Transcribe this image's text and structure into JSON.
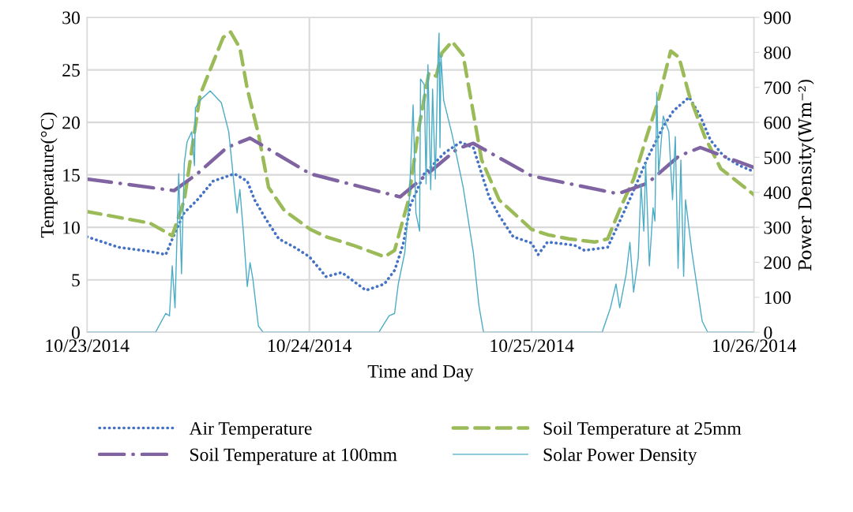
{
  "chart_data": {
    "type": "line",
    "xlabel": "Time and Day",
    "ylabel": "Temperature(°C)",
    "y2label": "Power Density(Wm⁻²)",
    "xlim": [
      "2014-10-23",
      "2014-10-26"
    ],
    "xticks": [
      {
        "value": "2014-10-23",
        "label": "10/23/2014"
      },
      {
        "value": "2014-10-24",
        "label": "10/24/2014"
      },
      {
        "value": "2014-10-25",
        "label": "10/25/2014"
      },
      {
        "value": "2014-10-26",
        "label": "10/26/2014"
      }
    ],
    "ylim": [
      0,
      30
    ],
    "yticks": [
      0,
      5,
      10,
      15,
      20,
      25,
      30
    ],
    "y2lim": [
      0,
      900
    ],
    "y2ticks": [
      0,
      100,
      200,
      300,
      400,
      500,
      600,
      700,
      800,
      900
    ],
    "grid": true,
    "legend": "bottom",
    "series": [
      {
        "name": "Air Temperature",
        "color": "#4472c4",
        "line_style": "dotted",
        "x": [
          "2014-10-23T00:00",
          "2014-10-23T03:24",
          "2014-10-23T06:48",
          "2014-10-23T08:30",
          "2014-10-23T09:24",
          "2014-10-23T10:30",
          "2014-10-23T11:54",
          "2014-10-23T13:36",
          "2014-10-23T15:54",
          "2014-10-23T17:18",
          "2014-10-23T18:06",
          "2014-10-23T19:18",
          "2014-10-23T20:42",
          "2014-10-23T22:24",
          "2014-10-24T00:00",
          "2014-10-24T01:48",
          "2014-10-24T03:30",
          "2014-10-24T06:06",
          "2014-10-24T08:06",
          "2014-10-24T09:12",
          "2014-10-24T10:06",
          "2014-10-24T10:54",
          "2014-10-24T12:24",
          "2014-10-24T14:36",
          "2014-10-24T16:18",
          "2014-10-24T17:42",
          "2014-10-24T18:36",
          "2014-10-24T19:24",
          "2014-10-24T20:30",
          "2014-10-24T22:00",
          "2014-10-25T00:00",
          "2014-10-25T00:42",
          "2014-10-25T01:42",
          "2014-10-25T04:36",
          "2014-10-25T05:42",
          "2014-10-25T08:12",
          "2014-10-25T09:06",
          "2014-10-25T10:48",
          "2014-10-25T12:30",
          "2014-10-25T14:12",
          "2014-10-25T15:18",
          "2014-10-25T17:00",
          "2014-10-25T18:12",
          "2014-10-25T19:18",
          "2014-10-25T20:42",
          "2014-10-25T22:24",
          "2014-10-26T00:00"
        ],
        "values": [
          9.1,
          8.1,
          7.7,
          7.4,
          9.3,
          11.4,
          12.6,
          14.4,
          15.1,
          14.4,
          12.6,
          10.8,
          8.9,
          8.1,
          7.2,
          5.3,
          5.7,
          4.0,
          4.6,
          5.9,
          8.3,
          12.1,
          15.1,
          17.1,
          18.1,
          17.6,
          15.1,
          12.9,
          11.1,
          9.1,
          8.5,
          7.4,
          8.6,
          8.3,
          7.8,
          8.1,
          9.8,
          13.1,
          16.6,
          19.6,
          21.1,
          22.4,
          20.6,
          18.3,
          16.8,
          15.9,
          15.3
        ]
      },
      {
        "name": "Soil Temperature at 25mm",
        "color": "#9bbb59",
        "line_style": "dashed",
        "x": [
          "2014-10-23T00:00",
          "2014-10-23T06:48",
          "2014-10-23T09:12",
          "2014-10-23T10:30",
          "2014-10-23T12:12",
          "2014-10-23T14:42",
          "2014-10-23T15:30",
          "2014-10-23T16:30",
          "2014-10-23T17:18",
          "2014-10-23T18:30",
          "2014-10-23T19:36",
          "2014-10-23T21:18",
          "2014-10-24T00:06",
          "2014-10-24T01:48",
          "2014-10-24T04:42",
          "2014-10-24T08:06",
          "2014-10-24T09:12",
          "2014-10-24T10:42",
          "2014-10-24T11:48",
          "2014-10-24T12:54",
          "2014-10-24T13:42",
          "2014-10-24T14:18",
          "2014-10-24T15:24",
          "2014-10-24T16:36",
          "2014-10-24T17:30",
          "2014-10-24T18:36",
          "2014-10-24T20:30",
          "2014-10-25T00:00",
          "2014-10-25T01:42",
          "2014-10-25T04:00",
          "2014-10-25T06:48",
          "2014-10-25T08:12",
          "2014-10-25T09:42",
          "2014-10-25T11:00",
          "2014-10-25T12:30",
          "2014-10-25T13:36",
          "2014-10-25T15:00",
          "2014-10-25T15:54",
          "2014-10-25T17:00",
          "2014-10-25T18:42",
          "2014-10-25T20:24",
          "2014-10-26T00:00"
        ],
        "values": [
          11.5,
          10.4,
          9.2,
          12.6,
          22.6,
          28.1,
          28.6,
          27.1,
          23.2,
          18.9,
          13.8,
          11.6,
          9.8,
          9.1,
          8.3,
          7.2,
          7.8,
          12.6,
          19.4,
          24.7,
          24.4,
          26.6,
          27.7,
          26.4,
          21.9,
          16.4,
          12.6,
          9.8,
          9.3,
          8.9,
          8.6,
          8.9,
          12.1,
          14.6,
          18.9,
          21.9,
          26.8,
          26.2,
          22.6,
          18.6,
          15.6,
          13.1
        ]
      },
      {
        "name": "Soil Temperature at 100mm",
        "color": "#8064a2",
        "line_style": "dashdot",
        "x": [
          "2014-10-23T00:00",
          "2014-10-23T09:24",
          "2014-10-23T11:54",
          "2014-10-23T15:06",
          "2014-10-23T17:36",
          "2014-10-24T00:06",
          "2014-10-24T09:48",
          "2014-10-24T16:00",
          "2014-10-24T17:42",
          "2014-10-25T00:00",
          "2014-10-25T09:18",
          "2014-10-25T12:30",
          "2014-10-25T15:54",
          "2014-10-25T18:12",
          "2014-10-26T00:00"
        ],
        "values": [
          14.6,
          13.5,
          15.1,
          17.6,
          18.5,
          15.1,
          12.9,
          17.5,
          18.0,
          14.9,
          13.2,
          14.2,
          16.8,
          17.6,
          15.7
        ]
      },
      {
        "name": "Solar Power Density",
        "color": "#4bacc6",
        "line_style": "solid",
        "axis": "y2",
        "x": [
          "2014-10-23T00:00",
          "2014-10-23T07:24",
          "2014-10-23T08:30",
          "2014-10-23T08:54",
          "2014-10-23T09:12",
          "2014-10-23T09:30",
          "2014-10-23T09:54",
          "2014-10-23T10:12",
          "2014-10-23T10:30",
          "2014-10-23T10:48",
          "2014-10-23T11:18",
          "2014-10-23T11:36",
          "2014-10-23T11:42",
          "2014-10-23T12:12",
          "2014-10-23T13:18",
          "2014-10-23T14:30",
          "2014-10-23T15:18",
          "2014-10-23T15:54",
          "2014-10-23T16:12",
          "2014-10-23T16:30",
          "2014-10-23T16:54",
          "2014-10-23T17:18",
          "2014-10-23T17:36",
          "2014-10-23T17:54",
          "2014-10-23T18:30",
          "2014-10-23T19:00",
          "2014-10-24T07:30",
          "2014-10-24T08:36",
          "2014-10-24T09:12",
          "2014-10-24T09:36",
          "2014-10-24T10:18",
          "2014-10-24T10:48",
          "2014-10-24T11:12",
          "2014-10-24T11:30",
          "2014-10-24T11:54",
          "2014-10-24T12:00",
          "2014-10-24T12:24",
          "2014-10-24T12:36",
          "2014-10-24T12:48",
          "2014-10-24T13:06",
          "2014-10-24T13:18",
          "2014-10-24T13:36",
          "2014-10-24T13:54",
          "2014-10-24T14:00",
          "2014-10-24T14:06",
          "2014-10-24T14:12",
          "2014-10-24T14:30",
          "2014-10-24T15:24",
          "2014-10-24T16:36",
          "2014-10-24T17:42",
          "2014-10-24T18:18",
          "2014-10-24T18:48",
          "2014-10-25T07:36",
          "2014-10-25T08:30",
          "2014-10-25T09:06",
          "2014-10-25T09:30",
          "2014-10-25T10:12",
          "2014-10-25T10:36",
          "2014-10-25T11:00",
          "2014-10-25T11:30",
          "2014-10-25T11:48",
          "2014-10-25T12:06",
          "2014-10-25T12:18",
          "2014-10-25T12:42",
          "2014-10-25T13:06",
          "2014-10-25T13:18",
          "2014-10-25T13:30",
          "2014-10-25T13:42",
          "2014-10-25T14:12",
          "2014-10-25T14:48",
          "2014-10-25T15:12",
          "2014-10-25T15:30",
          "2014-10-25T15:48",
          "2014-10-25T16:06",
          "2014-10-25T16:24",
          "2014-10-25T16:36",
          "2014-10-25T17:18",
          "2014-10-25T18:24",
          "2014-10-25T19:00",
          "2014-10-26T00:00"
        ],
        "values": [
          0,
          0,
          54,
          47,
          190,
          70,
          453,
          167,
          483,
          544,
          573,
          476,
          641,
          663,
          690,
          656,
          573,
          415,
          341,
          408,
          280,
          131,
          199,
          153,
          18,
          0,
          0,
          47,
          54,
          138,
          228,
          386,
          650,
          341,
          289,
          724,
          708,
          424,
          765,
          408,
          695,
          438,
          796,
          855,
          528,
          792,
          663,
          566,
          415,
          228,
          77,
          0,
          0,
          70,
          138,
          70,
          167,
          257,
          115,
          212,
          424,
          289,
          483,
          190,
          356,
          318,
          686,
          453,
          618,
          573,
          379,
          559,
          183,
          492,
          160,
          379,
          228,
          32,
          0,
          0
        ]
      }
    ]
  }
}
